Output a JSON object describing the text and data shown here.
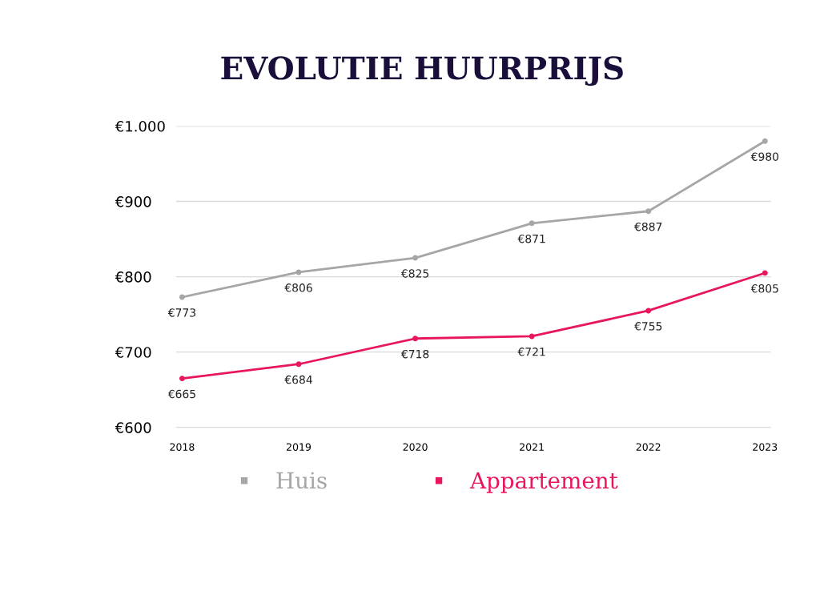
{
  "chart_data": {
    "type": "line",
    "title": "EVOLUTIE HUURPRIJS",
    "categories": [
      "2018",
      "2019",
      "2020",
      "2021",
      "2022",
      "2023"
    ],
    "series": [
      {
        "name": "Huis",
        "color": "#a6a6a6",
        "values": [
          773,
          806,
          825,
          871,
          887,
          980
        ],
        "value_labels": [
          "€773",
          "€806",
          "€825",
          "€871",
          "€887",
          "€980"
        ]
      },
      {
        "name": "Appartement",
        "color": "#e8175d",
        "values": [
          665,
          684,
          718,
          721,
          755,
          805
        ],
        "value_labels": [
          "€665",
          "€684",
          "€718",
          "€721",
          "€755",
          "€805"
        ]
      }
    ],
    "ylim": [
      600,
      1000
    ],
    "yticks": [
      {
        "value": 600,
        "label": "€600"
      },
      {
        "value": 700,
        "label": "€700"
      },
      {
        "value": 800,
        "label": "€800"
      },
      {
        "value": 900,
        "label": "€900"
      },
      {
        "value": 1000,
        "label": "€1.000"
      }
    ],
    "grid": "y",
    "legend": "bottom",
    "marker": "circle",
    "line_style": "solid"
  }
}
